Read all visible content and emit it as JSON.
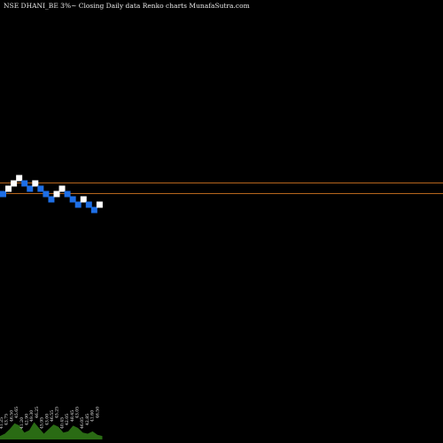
{
  "header": {
    "title": "NSE DHANI_BE 3%~  Closing Daily data  Renko  charts MunafaSutra.com"
  },
  "colors": {
    "background": "#000000",
    "up_brick": "#ffffff",
    "down_brick": "#1e6fe6",
    "level_line": "#b5651d",
    "volume": "#2a6b14"
  },
  "chart_data": {
    "type": "renko",
    "brick_size_percent": 3,
    "bricks": [
      {
        "dir": "down",
        "level": 0
      },
      {
        "dir": "up",
        "level": 1
      },
      {
        "dir": "up",
        "level": 2
      },
      {
        "dir": "up",
        "level": 3
      },
      {
        "dir": "down",
        "level": 2
      },
      {
        "dir": "down",
        "level": 1
      },
      {
        "dir": "up",
        "level": 2
      },
      {
        "dir": "down",
        "level": 1
      },
      {
        "dir": "down",
        "level": 0
      },
      {
        "dir": "down",
        "level": -1
      },
      {
        "dir": "up",
        "level": 0
      },
      {
        "dir": "up",
        "level": 1
      },
      {
        "dir": "down",
        "level": 0
      },
      {
        "dir": "down",
        "level": -1
      },
      {
        "dir": "down",
        "level": -2
      },
      {
        "dir": "up",
        "level": -1
      },
      {
        "dir": "down",
        "level": -2
      },
      {
        "dir": "down",
        "level": -3
      },
      {
        "dir": "up",
        "level": -2
      }
    ],
    "levels": [
      1.5,
      -0.5
    ],
    "volume_labels": [
      "41.25",
      "43.75",
      "46.50",
      "45.65",
      "41.20",
      "42.90",
      "49.30",
      "46.25",
      "45.95",
      "43.00",
      "46.55",
      "45.25",
      "40.45",
      "42.05",
      "48.45",
      "43.05",
      "46.05",
      "42.85",
      "41.60",
      "46.50"
    ],
    "volume": [
      3,
      5,
      9,
      14,
      12,
      6,
      8,
      15,
      10,
      5,
      9,
      13,
      11,
      6,
      7,
      12,
      10,
      6,
      5,
      7,
      4,
      3
    ]
  }
}
